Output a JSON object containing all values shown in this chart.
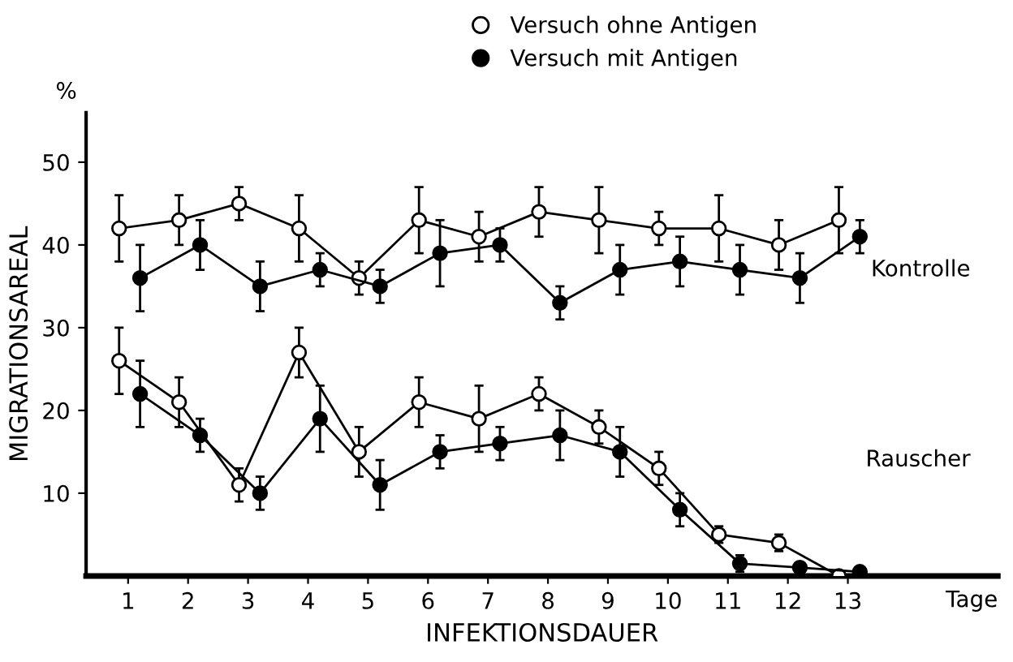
{
  "chart_data": {
    "type": "line",
    "xlabel": "INFEKTIONSDAUER",
    "ylabel": "MIGRATIONSAREAL",
    "xlim": [
      0.3,
      15.5
    ],
    "xticks": [
      1,
      2,
      3,
      4,
      5,
      6,
      7,
      8,
      9,
      10,
      11,
      12,
      13
    ],
    "ylim": [
      0,
      56
    ],
    "yticks": [
      10,
      20,
      30,
      40,
      50
    ],
    "grid": false,
    "legend": "top",
    "marker": "circle",
    "line_style": "solid",
    "series": [
      {
        "name": "Versuch ohne Antigen",
        "color": "#000000",
        "x": [
          0.85,
          1.85,
          2.85,
          3.85,
          4.85,
          5.85,
          6.85,
          7.85,
          8.85,
          9.85,
          10.85,
          11.85,
          12.85
        ],
        "values": [
          42,
          43,
          45,
          42,
          36,
          43,
          41,
          44,
          43,
          42,
          42,
          40,
          43
        ],
        "errors": [
          4,
          3,
          2,
          4,
          2,
          4,
          3,
          3,
          4,
          2,
          4,
          3,
          4
        ]
      },
      {
        "name": "Versuch mit Antigen",
        "color": "#000000",
        "x": [
          1.2,
          2.2,
          3.2,
          4.2,
          5.2,
          6.2,
          7.2,
          8.2,
          9.2,
          10.2,
          11.2,
          12.2,
          13.2
        ],
        "values": [
          36,
          40,
          35,
          37,
          35,
          39,
          40,
          33,
          37,
          38,
          37,
          36,
          41
        ],
        "errors": [
          4,
          3,
          3,
          2,
          2,
          4,
          2,
          2,
          3,
          3,
          3,
          3,
          2
        ]
      },
      {
        "color": "#000000",
        "x": [
          0.85,
          1.85,
          2.85,
          3.85,
          4.85,
          5.85,
          6.85,
          7.85,
          8.85,
          9.85,
          10.85,
          11.85,
          12.85
        ],
        "values": [
          26,
          21,
          11,
          27,
          15,
          21,
          19,
          22,
          18,
          13,
          5,
          4,
          0
        ],
        "errors": [
          4,
          3,
          2,
          3,
          3,
          3,
          4,
          2,
          2,
          2,
          1,
          1,
          null
        ]
      },
      {
        "color": "#000000",
        "x": [
          1.2,
          2.2,
          3.2,
          4.2,
          5.2,
          6.2,
          7.2,
          8.2,
          9.2,
          10.2,
          11.2,
          12.2,
          13.2
        ],
        "values": [
          22,
          17,
          10,
          19,
          11,
          15,
          16,
          17,
          15,
          8,
          1.5,
          1,
          0.5
        ],
        "errors": [
          4,
          2,
          2,
          4,
          3,
          2,
          2,
          3,
          3,
          2,
          1,
          null,
          null
        ]
      }
    ],
    "annotations": [
      "%",
      "Tage",
      "Kontrolle",
      "Rauscher"
    ]
  }
}
